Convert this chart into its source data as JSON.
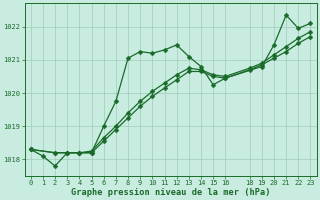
{
  "title": "Graphe pression niveau de la mer (hPa)",
  "background_color": "#c8ece0",
  "grid_color": "#a0ccb8",
  "line_color": "#1a6b2a",
  "ylim": [
    1017.5,
    1022.7
  ],
  "yticks": [
    1018,
    1019,
    1020,
    1021,
    1022
  ],
  "xlim": [
    -0.5,
    23.5
  ],
  "xticks": [
    0,
    1,
    2,
    3,
    4,
    5,
    6,
    7,
    8,
    9,
    10,
    11,
    12,
    13,
    14,
    15,
    16,
    18,
    19,
    20,
    21,
    22,
    23
  ],
  "line1_x": [
    0,
    1,
    2,
    3,
    4,
    5,
    6,
    7,
    8,
    9,
    10,
    11,
    12,
    13,
    14,
    15,
    16,
    19,
    20,
    21,
    22,
    23
  ],
  "line1_y": [
    1018.3,
    1018.1,
    1017.8,
    1018.2,
    1018.2,
    1018.2,
    1019.0,
    1019.75,
    1021.05,
    1021.25,
    1021.2,
    1021.3,
    1021.45,
    1021.1,
    1020.8,
    1020.25,
    1020.45,
    1020.8,
    1021.45,
    1022.35,
    1021.95,
    1022.1
  ],
  "line2_x": [
    0,
    2,
    3,
    4,
    5,
    6,
    7,
    8,
    9,
    10,
    11,
    12,
    13,
    14,
    15,
    16,
    18,
    19,
    20,
    21,
    22,
    23
  ],
  "line2_y": [
    1018.3,
    1018.2,
    1018.2,
    1018.2,
    1018.2,
    1018.55,
    1018.9,
    1019.25,
    1019.6,
    1019.9,
    1020.15,
    1020.4,
    1020.65,
    1020.65,
    1020.5,
    1020.45,
    1020.7,
    1020.85,
    1021.05,
    1021.25,
    1021.5,
    1021.7
  ],
  "line3_x": [
    0,
    2,
    3,
    4,
    5,
    6,
    7,
    8,
    9,
    10,
    11,
    12,
    13,
    14,
    15,
    16,
    18,
    19,
    20,
    21,
    22,
    23
  ],
  "line3_y": [
    1018.3,
    1018.2,
    1018.2,
    1018.2,
    1018.25,
    1018.65,
    1019.0,
    1019.4,
    1019.75,
    1020.05,
    1020.3,
    1020.55,
    1020.75,
    1020.7,
    1020.55,
    1020.5,
    1020.75,
    1020.9,
    1021.15,
    1021.4,
    1021.65,
    1021.85
  ]
}
